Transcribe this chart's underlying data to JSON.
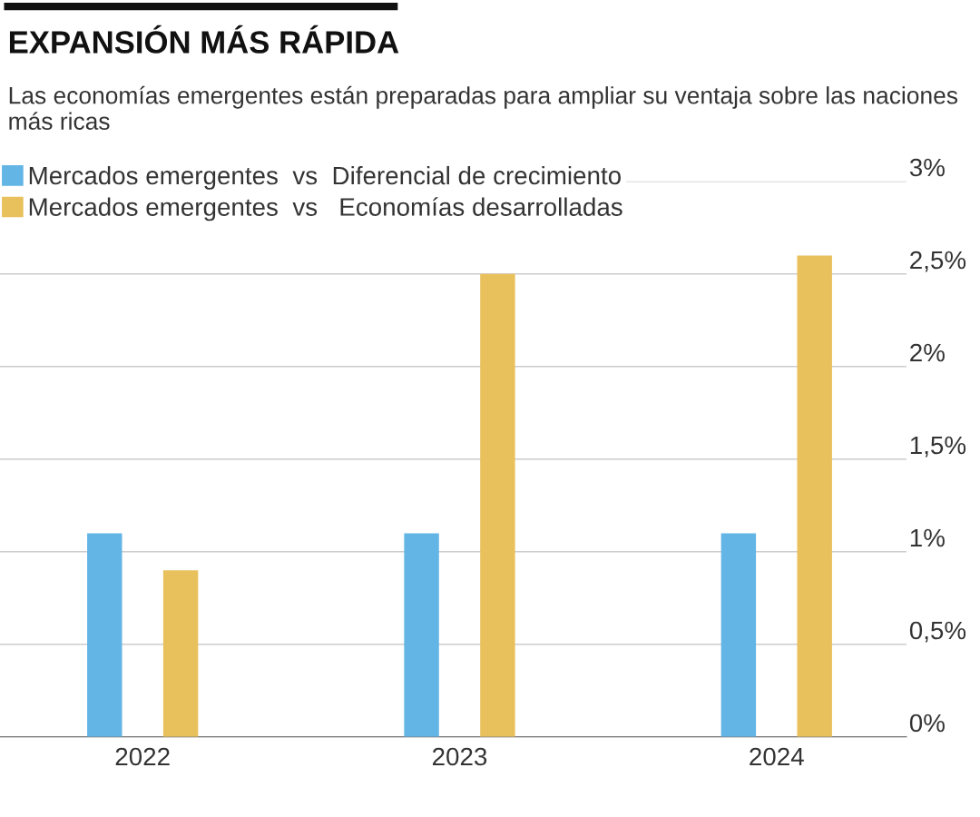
{
  "chart_data": {
    "type": "bar",
    "title": "EXPANSIÓN MÁS RÁPIDA",
    "subtitle": "Las economías emergentes están preparadas para ampliar su ventaja sobre las naciones más ricas",
    "categories": [
      "2022",
      "2023",
      "2024"
    ],
    "series": [
      {
        "name": "Mercados emergentes  vs  Diferencial de crecimiento",
        "color": "#62b5e5",
        "values": [
          1.1,
          1.1,
          1.1
        ]
      },
      {
        "name": "Mercados emergentes  vs   Economías desarrolladas",
        "color": "#e9c15c",
        "values": [
          0.9,
          2.5,
          2.6
        ]
      }
    ],
    "ylim": [
      0,
      3
    ],
    "yticks": [
      {
        "value": 0,
        "label": "0%"
      },
      {
        "value": 0.5,
        "label": "0,5%"
      },
      {
        "value": 1,
        "label": "1%"
      },
      {
        "value": 1.5,
        "label": "1,5%"
      },
      {
        "value": 2,
        "label": "2%"
      },
      {
        "value": 2.5,
        "label": "2,5%"
      },
      {
        "value": 3,
        "label": "3%"
      }
    ],
    "grid": "y",
    "legend": "top left"
  }
}
